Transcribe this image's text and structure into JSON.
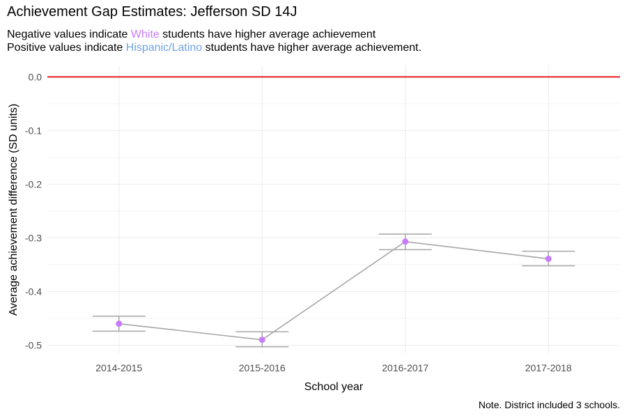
{
  "chart_data": {
    "type": "line",
    "title": "Achievement Gap Estimates: Jefferson SD 14J",
    "subtitle": {
      "line1": {
        "before": "Negative values indicate ",
        "highlight": "White",
        "after": " students have higher average achievement"
      },
      "line2": {
        "before": "Positive values indicate ",
        "highlight": "Hispanic/Latino",
        "after": " students have higher average achievement."
      }
    },
    "xlabel": "School year",
    "ylabel": "Average achievement difference (SD units)",
    "categories": [
      "2014-2015",
      "2015-2016",
      "2016-2017",
      "2017-2018"
    ],
    "values": [
      -0.46,
      -0.49,
      -0.307,
      -0.339
    ],
    "error_low": [
      -0.474,
      -0.503,
      -0.322,
      -0.352
    ],
    "error_high": [
      -0.446,
      -0.475,
      -0.293,
      -0.325
    ],
    "yticks": [
      0.0,
      -0.1,
      -0.2,
      -0.3,
      -0.4,
      -0.5
    ],
    "ytick_labels": [
      "0.0",
      "-0.1",
      "-0.2",
      "-0.3",
      "-0.4",
      "-0.5"
    ],
    "ylim": [
      -0.515,
      0.02
    ],
    "reference_line": 0,
    "grid": true,
    "caption": "Note. District included 3 schools.",
    "colors": {
      "point": "#c77cff",
      "line": "#a6a6a6",
      "reference": "#e41a1c",
      "white_highlight": "#c77cff",
      "hispanic_highlight": "#6fa3e6",
      "grid": "#ebebeb"
    }
  }
}
